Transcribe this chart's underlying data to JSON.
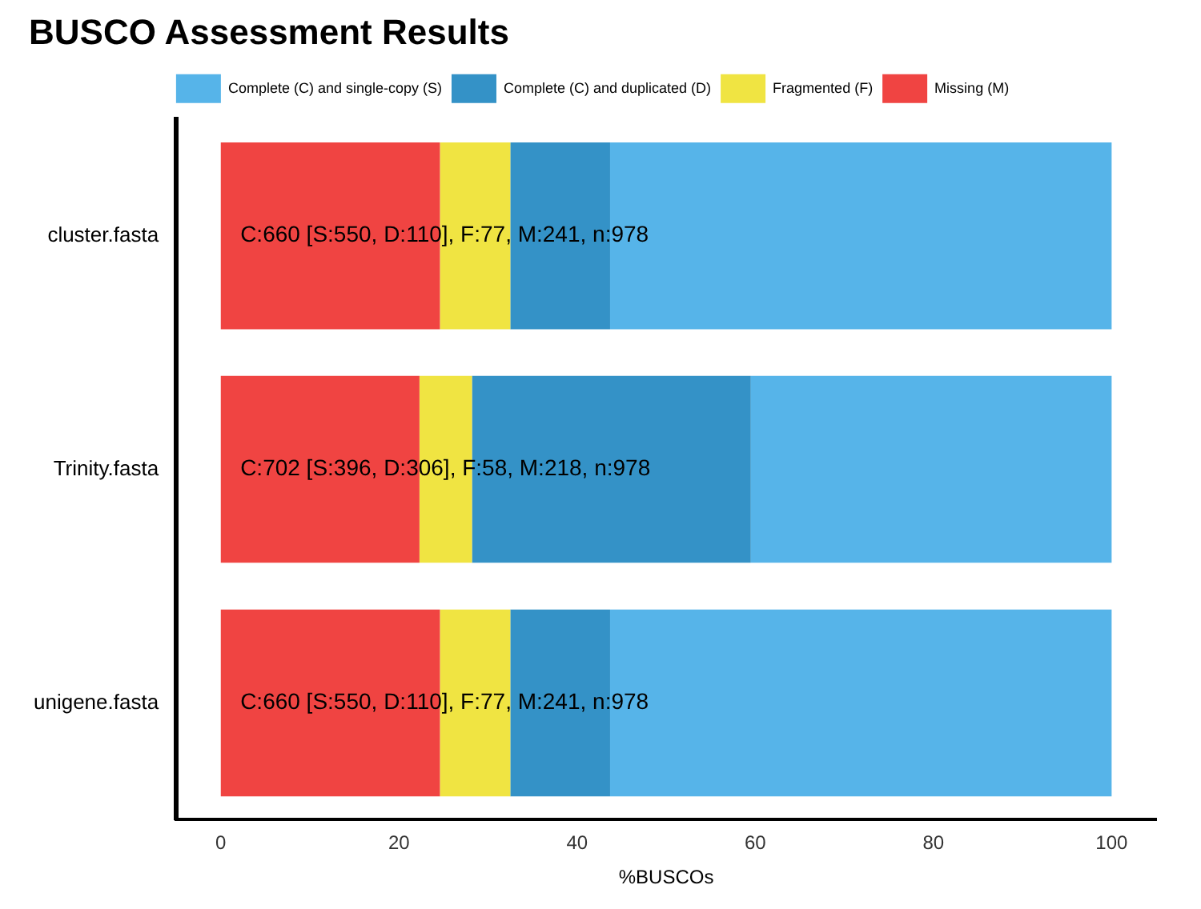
{
  "chart_data": {
    "type": "bar",
    "orientation": "horizontal",
    "stacked": true,
    "title": "BUSCO Assessment Results",
    "xlabel": "%BUSCOs",
    "categories": [
      "cluster.fasta",
      "Trinity.fasta",
      "unigene.fasta"
    ],
    "series": [
      {
        "name": "Missing (M)",
        "color": "#f04442",
        "values": [
          24.6,
          22.3,
          24.6
        ]
      },
      {
        "name": "Fragmented (F)",
        "color": "#f0e442",
        "values": [
          7.9,
          5.9,
          7.9
        ]
      },
      {
        "name": "Complete (C) and duplicated (D)",
        "color": "#3492c7",
        "values": [
          11.2,
          31.3,
          11.2
        ]
      },
      {
        "name": "Complete (C) and single-copy (S)",
        "color": "#56b4e9",
        "values": [
          56.3,
          40.5,
          56.3
        ]
      }
    ],
    "xlim": [
      -5,
      105
    ],
    "xticks": [
      0,
      20,
      40,
      60,
      80,
      100
    ],
    "grid": false,
    "legend": "top",
    "annotations": [
      "C:660 [S:550, D:110], F:77, M:241, n:978",
      "C:702 [S:396, D:306], F:58, M:218, n:978",
      "C:660 [S:550, D:110], F:77, M:241, n:978"
    ]
  }
}
